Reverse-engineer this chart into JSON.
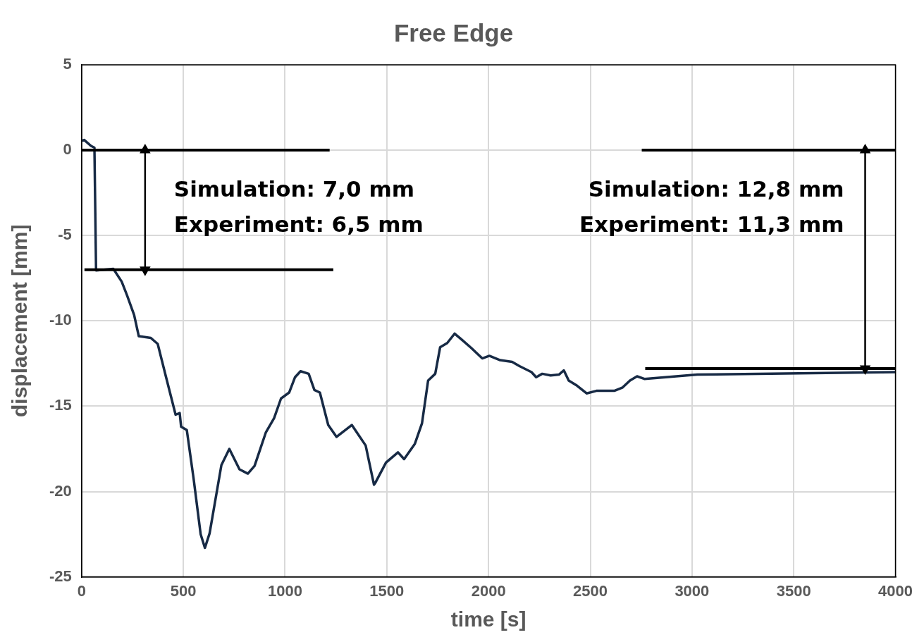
{
  "chart_data": {
    "type": "line",
    "title": "Free Edge",
    "xlabel": "time [s]",
    "ylabel": "displacement [mm]",
    "xlim": [
      0,
      4000
    ],
    "xticks": [
      0,
      500,
      1000,
      1500,
      2000,
      2500,
      3000,
      3500,
      4000
    ],
    "ylim": [
      -25,
      5
    ],
    "yticks": [
      -25,
      -20,
      -15,
      -10,
      -5,
      0,
      5
    ],
    "grid": true,
    "legend": false,
    "marker": "none",
    "line_style": "solid",
    "series": [
      {
        "color": "#172a45",
        "x": [
          0,
          13,
          46,
          63,
          71,
          156,
          197,
          223,
          258,
          281,
          340,
          374,
          414,
          462,
          482,
          489,
          517,
          551,
          585,
          606,
          629,
          687,
          726,
          776,
          817,
          850,
          905,
          946,
          980,
          1020,
          1049,
          1076,
          1116,
          1144,
          1171,
          1212,
          1253,
          1328,
          1396,
          1437,
          1443,
          1496,
          1555,
          1585,
          1638,
          1673,
          1703,
          1738,
          1762,
          1797,
          1833,
          1868,
          1916,
          1969,
          2004,
          2057,
          2116,
          2152,
          2211,
          2234,
          2264,
          2305,
          2346,
          2370,
          2394,
          2435,
          2482,
          2530,
          2618,
          2659,
          2695,
          2730,
          2766,
          3026,
          4000
        ],
        "values": [
          0.55,
          0.6,
          0.25,
          0.15,
          -7.05,
          -6.95,
          -7.7,
          -8.5,
          -9.65,
          -10.9,
          -11.0,
          -11.35,
          -13.25,
          -15.5,
          -15.4,
          -16.2,
          -16.4,
          -19.3,
          -22.5,
          -23.3,
          -22.45,
          -18.45,
          -17.5,
          -18.7,
          -18.95,
          -18.5,
          -16.55,
          -15.7,
          -14.55,
          -14.2,
          -13.3,
          -12.95,
          -13.1,
          -14.05,
          -14.2,
          -16.1,
          -16.8,
          -16.1,
          -17.3,
          -19.6,
          -19.5,
          -18.3,
          -17.7,
          -18.1,
          -17.2,
          -16.0,
          -13.5,
          -13.1,
          -11.55,
          -11.3,
          -10.75,
          -11.1,
          -11.6,
          -12.2,
          -12.05,
          -12.3,
          -12.4,
          -12.65,
          -13.0,
          -13.3,
          -13.1,
          -13.2,
          -13.15,
          -12.9,
          -13.5,
          -13.8,
          -14.25,
          -14.1,
          -14.1,
          -13.9,
          -13.5,
          -13.25,
          -13.4,
          -13.15,
          -13.0
        ]
      },
      {
        "color": "#000000",
        "x": [
          0,
          1219
        ],
        "values": [
          0,
          0
        ]
      },
      {
        "color": "#000000",
        "x": [
          14,
          1237
        ],
        "values": [
          -7,
          -7
        ]
      },
      {
        "color": "#000000",
        "x": [
          2753,
          4000
        ],
        "values": [
          0,
          0
        ]
      },
      {
        "color": "#000000",
        "x": [
          2770,
          4000
        ],
        "values": [
          -12.8,
          -12.8
        ]
      },
      {
        "color": "#000000",
        "x": [
          312,
          312
        ],
        "values": [
          0,
          -7
        ],
        "marker": "triangle"
      },
      {
        "color": "#000000",
        "x": [
          3851,
          3851
        ],
        "values": [
          0,
          -12.8
        ],
        "marker": "triangle"
      }
    ],
    "annotations": [
      "Simulation: 7,0 mm",
      "Experiment: 6,5 mm",
      "Simulation: 12,8 mm",
      "Experiment: 11,3 mm"
    ]
  }
}
